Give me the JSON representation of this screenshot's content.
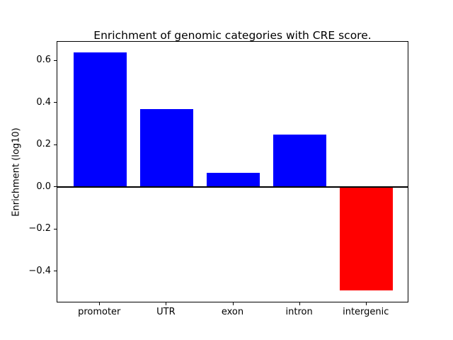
{
  "chart_data": {
    "type": "bar",
    "title": "Enrichment of genomic categories with CRE score.",
    "categories": [
      "promoter",
      "UTR",
      "exon",
      "intron",
      "intergenic"
    ],
    "values": [
      0.64,
      0.37,
      0.07,
      0.25,
      -0.49
    ],
    "xlabel": "",
    "ylabel": "Enrichment (log10)",
    "ylim": [
      -0.55,
      0.69
    ],
    "xlim": [
      -0.64,
      4.64
    ],
    "yticks": [
      0.6,
      0.4,
      0.2,
      0.0,
      -0.2,
      -0.4
    ],
    "bar_width": 0.8,
    "positive_color": "#0000ff",
    "negative_color": "#ff0000",
    "axis_color": "#000000",
    "background_color": "#ffffff",
    "zero_line": true,
    "zero_line_width": 2,
    "grid": false,
    "legend": null
  }
}
